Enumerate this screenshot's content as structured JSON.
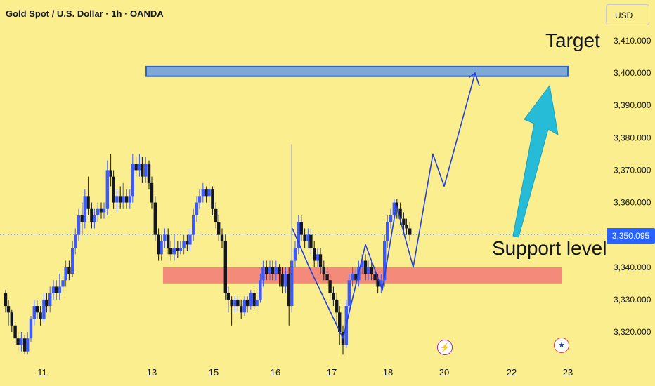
{
  "header": {
    "symbol": "Gold Spot / U.S. Dollar · 1h · OANDA"
  },
  "price_scale": {
    "currency": "USD",
    "last_price": "3,350.095"
  },
  "annotations": {
    "target": "Target",
    "support": "Support level"
  },
  "events": [
    {
      "icon": "lightning-icon",
      "at": "20"
    },
    {
      "icon": "us-flag-icon",
      "at": "22.5"
    }
  ],
  "colors": {
    "background": "#fbee8f",
    "bull": "#3d5afe",
    "bear": "#131722",
    "target_zone": "#7fa8d6",
    "support_zone": "#f48a7a",
    "projection": "#2340d8",
    "arrow": "#26bbd6",
    "last_price": "#2962ff"
  },
  "chart_data": {
    "type": "candlestick",
    "title": "Gold Spot / U.S. Dollar · 1h · OANDA",
    "ylim": [
      3312,
      3420
    ],
    "y_ticks": [
      "3,320.000",
      "3,330.000",
      "3,340.000",
      "3,350.000",
      "3,360.000",
      "3,370.000",
      "3,380.000",
      "3,390.000",
      "3,400.000",
      "3,410.000"
    ],
    "y_tick_values": [
      3320,
      3330,
      3340,
      3350,
      3360,
      3370,
      3380,
      3390,
      3400,
      3410
    ],
    "x_ticks": [
      "11",
      "13",
      "15",
      "16",
      "17",
      "18",
      "20",
      "22",
      "23"
    ],
    "x_tick_values": [
      11.35,
      13.3,
      14.4,
      15.5,
      16.5,
      17.5,
      18.5,
      19.7,
      20.7
    ],
    "xlim": [
      10.7,
      21.2
    ],
    "candles": [
      [
        10.7,
        3332,
        3328,
        3333,
        3326
      ],
      [
        10.75,
        3328,
        3326,
        3330,
        3322
      ],
      [
        10.81,
        3326,
        3322,
        3327,
        3320
      ],
      [
        10.87,
        3322,
        3318,
        3323,
        3316
      ],
      [
        10.92,
        3318,
        3316,
        3320,
        3314
      ],
      [
        10.98,
        3316,
        3318,
        3320,
        3314
      ],
      [
        11.04,
        3318,
        3314,
        3319,
        3313
      ],
      [
        11.09,
        3314,
        3318,
        3320,
        3313
      ],
      [
        11.15,
        3318,
        3324,
        3325,
        3317
      ],
      [
        11.21,
        3324,
        3328,
        3330,
        3322
      ],
      [
        11.26,
        3328,
        3326,
        3330,
        3324
      ],
      [
        11.32,
        3326,
        3324,
        3328,
        3322
      ],
      [
        11.38,
        3324,
        3330,
        3332,
        3323
      ],
      [
        11.43,
        3330,
        3328,
        3332,
        3326
      ],
      [
        11.49,
        3328,
        3332,
        3334,
        3326
      ],
      [
        11.55,
        3332,
        3334,
        3336,
        3330
      ],
      [
        11.6,
        3334,
        3332,
        3336,
        3330
      ],
      [
        11.66,
        3332,
        3334,
        3338,
        3330
      ],
      [
        11.72,
        3334,
        3336,
        3338,
        3332
      ],
      [
        11.77,
        3336,
        3340,
        3342,
        3334
      ],
      [
        11.83,
        3340,
        3338,
        3342,
        3336
      ],
      [
        11.89,
        3338,
        3346,
        3348,
        3337
      ],
      [
        11.94,
        3346,
        3350,
        3352,
        3344
      ],
      [
        12.0,
        3350,
        3356,
        3358,
        3348
      ],
      [
        12.06,
        3356,
        3354,
        3360,
        3350
      ],
      [
        12.11,
        3354,
        3362,
        3364,
        3352
      ],
      [
        12.17,
        3362,
        3358,
        3368,
        3356
      ],
      [
        12.23,
        3358,
        3354,
        3360,
        3352
      ],
      [
        12.28,
        3354,
        3356,
        3358,
        3352
      ],
      [
        12.34,
        3356,
        3358,
        3360,
        3354
      ],
      [
        12.4,
        3358,
        3357,
        3360,
        3355
      ],
      [
        12.45,
        3357,
        3358,
        3360,
        3355
      ],
      [
        12.51,
        3358,
        3370,
        3373,
        3356
      ],
      [
        12.57,
        3370,
        3368,
        3375,
        3365
      ],
      [
        12.62,
        3368,
        3360,
        3370,
        3358
      ],
      [
        12.68,
        3360,
        3362,
        3364,
        3357
      ],
      [
        12.74,
        3362,
        3360,
        3365,
        3358
      ],
      [
        12.79,
        3360,
        3362,
        3366,
        3358
      ],
      [
        12.85,
        3362,
        3360,
        3364,
        3358
      ],
      [
        12.91,
        3360,
        3362,
        3364,
        3358
      ],
      [
        12.96,
        3362,
        3372,
        3375,
        3360
      ],
      [
        13.02,
        3372,
        3370,
        3374,
        3368
      ],
      [
        13.08,
        3370,
        3372,
        3375,
        3368
      ],
      [
        13.13,
        3372,
        3368,
        3374,
        3366
      ],
      [
        13.19,
        3368,
        3372,
        3374,
        3366
      ],
      [
        13.25,
        3372,
        3366,
        3373,
        3364
      ],
      [
        13.3,
        3366,
        3360,
        3368,
        3358
      ],
      [
        13.36,
        3360,
        3350,
        3362,
        3348
      ],
      [
        13.42,
        3350,
        3344,
        3352,
        3342
      ],
      [
        13.47,
        3344,
        3348,
        3350,
        3342
      ],
      [
        13.53,
        3348,
        3350,
        3352,
        3346
      ],
      [
        13.59,
        3350,
        3346,
        3352,
        3344
      ],
      [
        13.64,
        3346,
        3344,
        3348,
        3342
      ],
      [
        13.7,
        3344,
        3346,
        3350,
        3342
      ],
      [
        13.76,
        3346,
        3345,
        3348,
        3343
      ],
      [
        13.81,
        3345,
        3346,
        3348,
        3344
      ],
      [
        13.87,
        3346,
        3348,
        3350,
        3344
      ],
      [
        13.93,
        3348,
        3347,
        3350,
        3345
      ],
      [
        13.98,
        3347,
        3350,
        3352,
        3345
      ],
      [
        14.04,
        3350,
        3356,
        3358,
        3348
      ],
      [
        14.1,
        3356,
        3360,
        3362,
        3354
      ],
      [
        14.15,
        3360,
        3362,
        3364,
        3358
      ],
      [
        14.21,
        3362,
        3364,
        3366,
        3360
      ],
      [
        14.27,
        3364,
        3362,
        3365,
        3360
      ],
      [
        14.32,
        3362,
        3364,
        3366,
        3360
      ],
      [
        14.38,
        3364,
        3358,
        3365,
        3356
      ],
      [
        14.44,
        3358,
        3354,
        3360,
        3352
      ],
      [
        14.49,
        3354,
        3350,
        3356,
        3348
      ],
      [
        14.55,
        3350,
        3348,
        3352,
        3346
      ],
      [
        14.61,
        3348,
        3332,
        3350,
        3330
      ],
      [
        14.66,
        3332,
        3330,
        3334,
        3326
      ],
      [
        14.72,
        3330,
        3328,
        3331,
        3322
      ],
      [
        14.78,
        3328,
        3330,
        3331,
        3326
      ],
      [
        14.83,
        3330,
        3328,
        3331,
        3326
      ],
      [
        14.89,
        3328,
        3326,
        3330,
        3324
      ],
      [
        14.95,
        3326,
        3330,
        3331,
        3325
      ],
      [
        15.0,
        3330,
        3328,
        3331,
        3326
      ],
      [
        15.06,
        3328,
        3332,
        3333,
        3327
      ],
      [
        15.12,
        3332,
        3328,
        3333,
        3327
      ],
      [
        15.17,
        3328,
        3330,
        3332,
        3326
      ],
      [
        15.23,
        3330,
        3336,
        3338,
        3329
      ],
      [
        15.28,
        3336,
        3340,
        3342,
        3334
      ],
      [
        15.34,
        3340,
        3338,
        3342,
        3336
      ],
      [
        15.4,
        3338,
        3340,
        3342,
        3336
      ],
      [
        15.45,
        3340,
        3338,
        3342,
        3336
      ],
      [
        15.51,
        3338,
        3340,
        3342,
        3336
      ],
      [
        15.57,
        3340,
        3338,
        3341,
        3334
      ],
      [
        15.62,
        3338,
        3334,
        3340,
        3332
      ],
      [
        15.68,
        3334,
        3338,
        3340,
        3332
      ],
      [
        15.74,
        3338,
        3328,
        3340,
        3322
      ],
      [
        15.79,
        3328,
        3342,
        3378,
        3326
      ],
      [
        15.85,
        3342,
        3346,
        3348,
        3340
      ],
      [
        15.91,
        3346,
        3354,
        3356,
        3344
      ],
      [
        15.96,
        3354,
        3350,
        3356,
        3348
      ],
      [
        16.02,
        3350,
        3348,
        3352,
        3346
      ],
      [
        16.08,
        3348,
        3350,
        3352,
        3346
      ],
      [
        16.13,
        3350,
        3346,
        3352,
        3344
      ],
      [
        16.19,
        3346,
        3342,
        3348,
        3340
      ],
      [
        16.25,
        3342,
        3344,
        3346,
        3340
      ],
      [
        16.3,
        3344,
        3340,
        3346,
        3338
      ],
      [
        16.36,
        3340,
        3338,
        3342,
        3336
      ],
      [
        16.42,
        3338,
        3336,
        3340,
        3334
      ],
      [
        16.47,
        3336,
        3332,
        3338,
        3330
      ],
      [
        16.53,
        3332,
        3330,
        3334,
        3328
      ],
      [
        16.59,
        3330,
        3326,
        3332,
        3322
      ],
      [
        16.64,
        3326,
        3320,
        3328,
        3316
      ],
      [
        16.7,
        3320,
        3316,
        3322,
        3313
      ],
      [
        16.76,
        3316,
        3328,
        3330,
        3315
      ],
      [
        16.81,
        3328,
        3336,
        3338,
        3326
      ],
      [
        16.87,
        3336,
        3338,
        3340,
        3334
      ],
      [
        16.93,
        3338,
        3336,
        3340,
        3334
      ],
      [
        16.98,
        3336,
        3340,
        3342,
        3334
      ],
      [
        17.04,
        3340,
        3342,
        3344,
        3338
      ],
      [
        17.1,
        3342,
        3338,
        3344,
        3336
      ],
      [
        17.15,
        3338,
        3340,
        3342,
        3336
      ],
      [
        17.21,
        3340,
        3338,
        3342,
        3336
      ],
      [
        17.27,
        3338,
        3336,
        3340,
        3334
      ],
      [
        17.32,
        3336,
        3334,
        3338,
        3332
      ],
      [
        17.38,
        3334,
        3336,
        3338,
        3332
      ],
      [
        17.44,
        3336,
        3348,
        3350,
        3334
      ],
      [
        17.49,
        3348,
        3354,
        3356,
        3346
      ],
      [
        17.55,
        3354,
        3356,
        3358,
        3352
      ],
      [
        17.61,
        3356,
        3360,
        3361,
        3354
      ],
      [
        17.66,
        3360,
        3358,
        3361,
        3355
      ],
      [
        17.72,
        3358,
        3355,
        3360,
        3353
      ],
      [
        17.78,
        3355,
        3353,
        3357,
        3351
      ],
      [
        17.83,
        3353,
        3352,
        3355,
        3350
      ],
      [
        17.89,
        3352,
        3350,
        3354,
        3348
      ]
    ],
    "zones": [
      {
        "name": "target",
        "y_low": 3399,
        "y_high": 3402,
        "x_start": 13.2,
        "x_end": 20.7
      },
      {
        "name": "support",
        "y_low": 3335,
        "y_high": 3340,
        "x_start": 13.5,
        "x_end": 20.6
      }
    ],
    "projection_path": [
      [
        13.2,
        3349
      ],
      [
        13.9,
        3349
      ],
      [
        14.3,
        3349
      ],
      [
        15.8,
        3352
      ],
      [
        16.1,
        3340
      ],
      [
        16.7,
        3318
      ],
      [
        17.1,
        3347
      ],
      [
        17.4,
        3333
      ],
      [
        17.65,
        3359
      ],
      [
        17.95,
        3340
      ],
      [
        18.3,
        3375
      ],
      [
        18.5,
        3365
      ],
      [
        19.05,
        3400
      ]
    ],
    "grid": false,
    "last_price": 3350.095
  }
}
